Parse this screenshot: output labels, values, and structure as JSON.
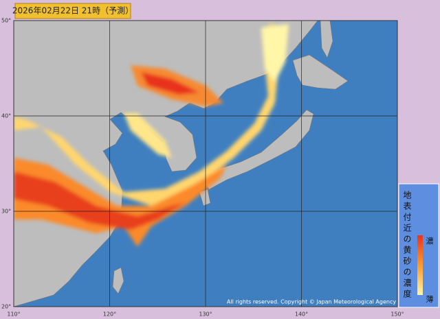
{
  "header": {
    "title": "2026年02月22日 21時（予測）"
  },
  "map": {
    "lat_ticks": [
      {
        "value": 50,
        "label": "50°"
      },
      {
        "value": 40,
        "label": "40°"
      },
      {
        "value": 30,
        "label": "30°"
      },
      {
        "value": 20,
        "label": "20°"
      }
    ],
    "lon_ticks": [
      {
        "value": 110,
        "label": "110°"
      },
      {
        "value": 120,
        "label": "120°"
      },
      {
        "value": 130,
        "label": "130°"
      },
      {
        "value": 140,
        "label": "140°"
      },
      {
        "value": 150,
        "label": "150°"
      }
    ],
    "credit": "All rights reserved. Copyright © Japan Meteorological Agency"
  },
  "legend": {
    "title": "地表付近の黄砂の濃度",
    "high": "濃",
    "low": "薄"
  }
}
